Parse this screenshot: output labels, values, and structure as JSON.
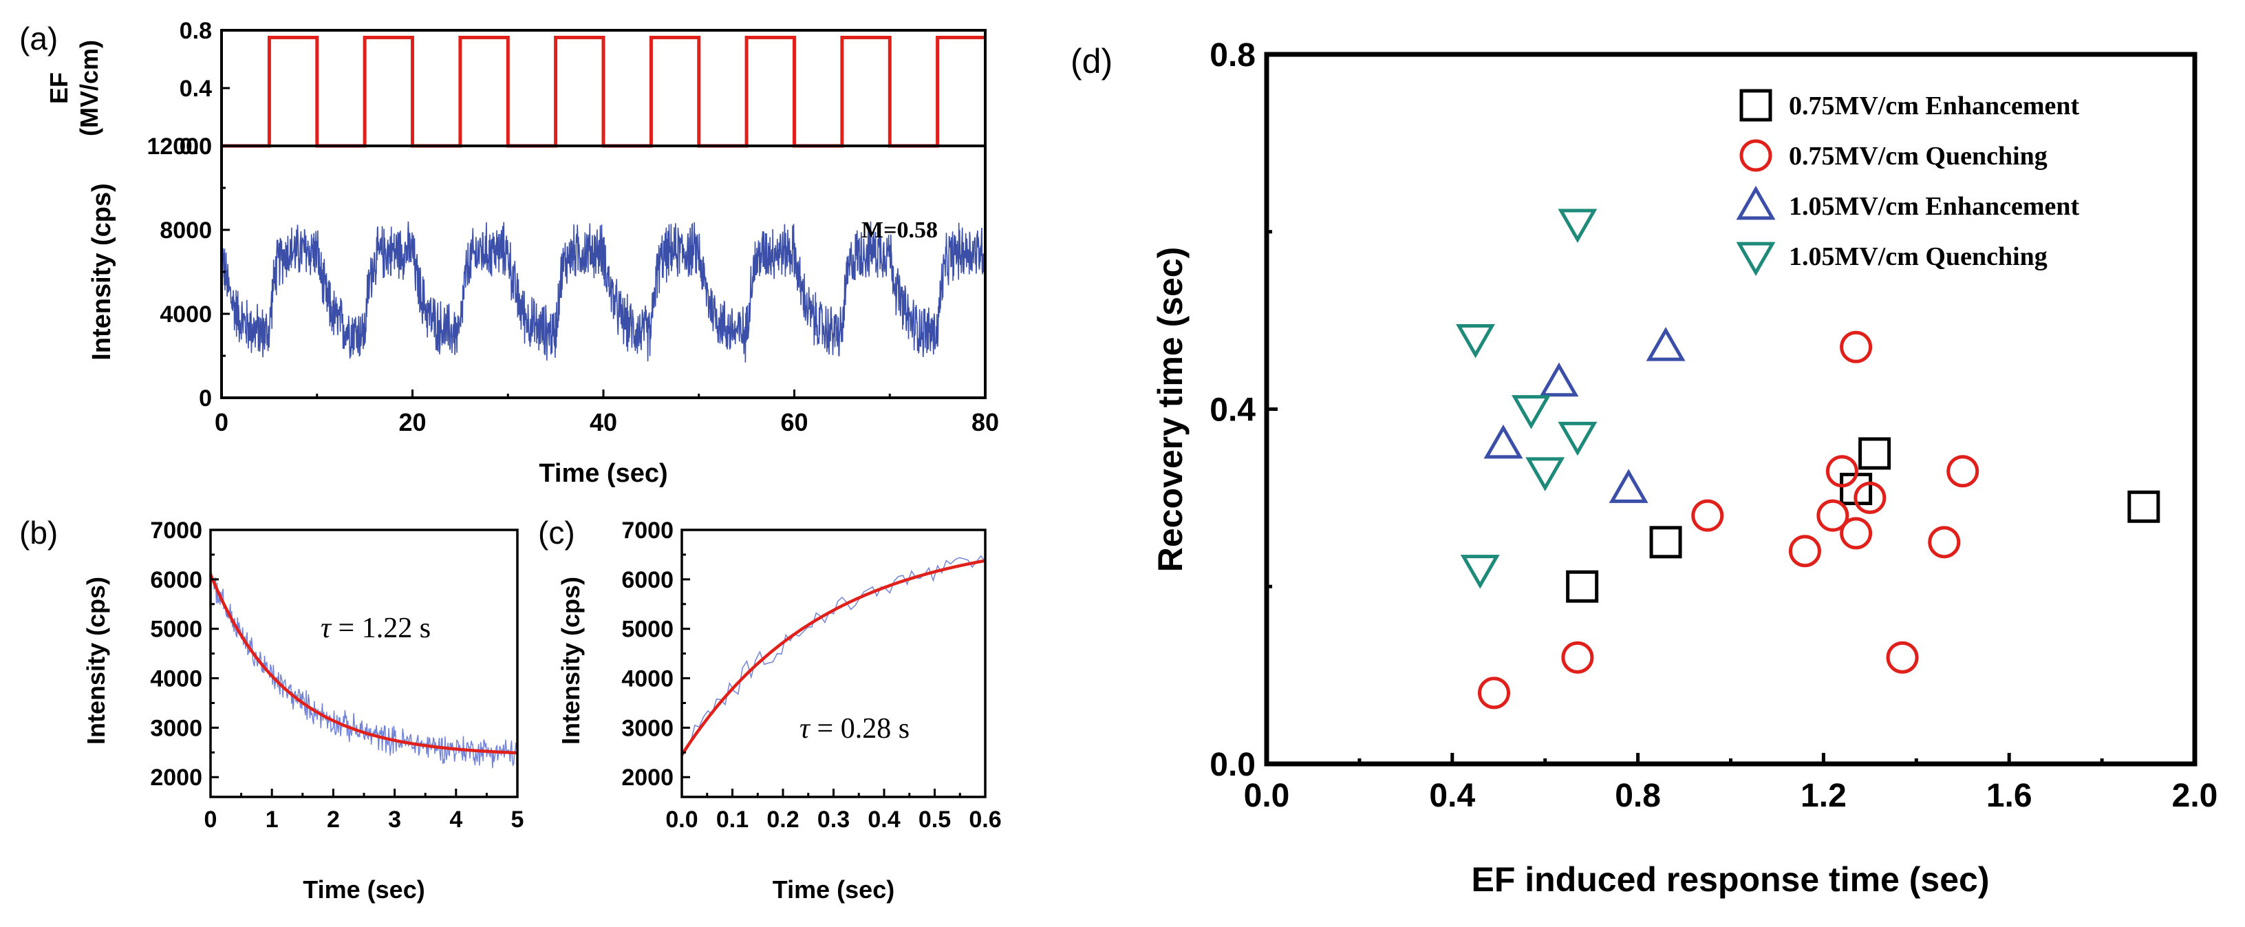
{
  "chart_data": [
    {
      "panel": "(a)",
      "type": "line",
      "subplots": [
        {
          "ylabel_lines": [
            "EF",
            "(MV/cm)"
          ],
          "y_ticks": [
            "0.0",
            "0.4",
            "0.8"
          ],
          "ylim": [
            0,
            0.8
          ],
          "series": [
            {
              "color": "#e0201b",
              "kind": "square-wave",
              "x": [
                0,
                5,
                5,
                10,
                10,
                15,
                15,
                20,
                20,
                25,
                25,
                30,
                30,
                35,
                35,
                40,
                40,
                45,
                45,
                50,
                50,
                55,
                55,
                60,
                60,
                65,
                65,
                70,
                70,
                75,
                75,
                80
              ],
              "y": [
                0,
                0,
                0.75,
                0.75,
                0,
                0,
                0.75,
                0.75,
                0,
                0,
                0.75,
                0.75,
                0,
                0,
                0.75,
                0.75,
                0,
                0,
                0.75,
                0.75,
                0,
                0,
                0.75,
                0.75,
                0,
                0,
                0.75,
                0.75,
                0,
                0,
                0.75,
                0.75
              ]
            }
          ]
        },
        {
          "ylabel": "Intensity (cps)",
          "y_ticks": [
            "0",
            "4000",
            "8000",
            "12000"
          ],
          "ylim": [
            0,
            12000
          ],
          "annotation": "M=0.58",
          "series": [
            {
              "color": "#3b4fa8",
              "kind": "noisy-trace",
              "period": 10,
              "high_level": 7000,
              "low_level": 3000,
              "noise_amplitude": 1400
            }
          ]
        }
      ],
      "xlabel": "Time (sec)",
      "x_ticks": [
        "0",
        "20",
        "40",
        "60",
        "80"
      ],
      "xlim": [
        0,
        80
      ]
    },
    {
      "panel": "(b)",
      "type": "line",
      "xlabel": "Time (sec)",
      "ylabel": "Intensity (cps)",
      "x_ticks": [
        "0",
        "1",
        "2",
        "3",
        "4",
        "5"
      ],
      "y_ticks": [
        "2000",
        "3000",
        "4000",
        "5000",
        "6000",
        "7000"
      ],
      "xlim": [
        0,
        5
      ],
      "ylim": [
        1600,
        7000
      ],
      "annotation": {
        "symbol": "τ",
        "text": " = 1.22 s"
      },
      "series": [
        {
          "kind": "noisy-data",
          "color": "#5b6fd0",
          "model": "exp-decay",
          "y0": 6100,
          "y_inf": 2430,
          "tau": 1.22,
          "noise_amplitude": 350
        },
        {
          "kind": "fit",
          "color": "#e0201b",
          "model": "exp-decay",
          "y0": 6100,
          "y_inf": 2430,
          "tau": 1.22
        }
      ]
    },
    {
      "panel": "(c)",
      "type": "line",
      "xlabel": "Time (sec)",
      "ylabel": "Intensity (cps)",
      "x_ticks": [
        "0.0",
        "0.1",
        "0.2",
        "0.3",
        "0.4",
        "0.5",
        "0.6"
      ],
      "y_ticks": [
        "2000",
        "3000",
        "4000",
        "5000",
        "6000",
        "7000"
      ],
      "xlim": [
        0,
        0.6
      ],
      "ylim": [
        1600,
        7000
      ],
      "annotation": {
        "symbol": "τ",
        "text": " = 0.28 s"
      },
      "series": [
        {
          "kind": "noisy-data",
          "color": "#5b6fd0",
          "model": "exp-rise",
          "y0": 2450,
          "y_inf": 6900,
          "tau": 0.28,
          "noise_amplitude": 300
        },
        {
          "kind": "fit",
          "color": "#e0201b",
          "model": "exp-rise",
          "y0": 2450,
          "y_inf": 6900,
          "tau": 0.28
        }
      ]
    },
    {
      "panel": "(d)",
      "type": "scatter",
      "xlabel": "EF induced response time (sec)",
      "ylabel": "Recovery time (sec)",
      "x_ticks": [
        "0.0",
        "0.4",
        "0.8",
        "1.2",
        "1.6",
        "2.0"
      ],
      "y_ticks": [
        "0.0",
        "0.4",
        "0.8"
      ],
      "xlim": [
        0,
        2.0
      ],
      "ylim": [
        0,
        0.8
      ],
      "legend_position": "top-right",
      "series": [
        {
          "name": "0.75MV/cm Enhancement",
          "marker": "square",
          "color": "#000000",
          "points": [
            [
              0.68,
              0.2
            ],
            [
              0.86,
              0.25
            ],
            [
              1.27,
              0.31
            ],
            [
              1.31,
              0.35
            ],
            [
              1.89,
              0.29
            ]
          ]
        },
        {
          "name": "0.75MV/cm Quenching",
          "marker": "circle",
          "color": "#e0201b",
          "points": [
            [
              0.49,
              0.08
            ],
            [
              0.67,
              0.12
            ],
            [
              0.95,
              0.28
            ],
            [
              1.16,
              0.24
            ],
            [
              1.22,
              0.28
            ],
            [
              1.24,
              0.33
            ],
            [
              1.27,
              0.26
            ],
            [
              1.27,
              0.47
            ],
            [
              1.3,
              0.3
            ],
            [
              1.37,
              0.12
            ],
            [
              1.46,
              0.25
            ],
            [
              1.5,
              0.33
            ]
          ]
        },
        {
          "name": "1.05MV/cm Enhancement",
          "marker": "triangle-up",
          "color": "#3b4fa8",
          "points": [
            [
              0.51,
              0.36
            ],
            [
              0.63,
              0.43
            ],
            [
              0.78,
              0.31
            ],
            [
              0.86,
              0.47
            ]
          ]
        },
        {
          "name": "1.05MV/cm Quenching",
          "marker": "triangle-down",
          "color": "#1e8a7a",
          "points": [
            [
              0.45,
              0.48
            ],
            [
              0.46,
              0.22
            ],
            [
              0.57,
              0.4
            ],
            [
              0.6,
              0.33
            ],
            [
              0.67,
              0.37
            ],
            [
              0.67,
              0.61
            ]
          ]
        }
      ]
    }
  ]
}
